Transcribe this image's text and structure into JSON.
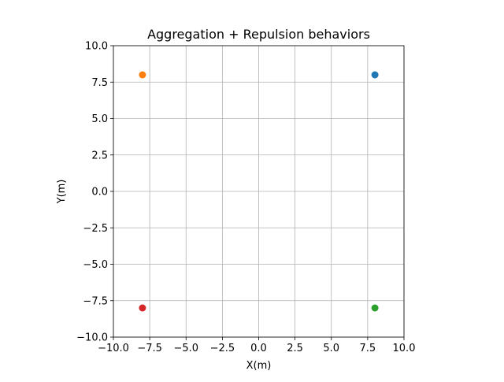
{
  "chart_data": {
    "type": "scatter",
    "title": "Aggregation + Repulsion behaviors",
    "xlabel": "X(m)",
    "ylabel": "Y(m)",
    "xlim": [
      -10,
      10
    ],
    "ylim": [
      -10,
      10
    ],
    "xticks": [
      -10,
      -7.5,
      -5,
      -2.5,
      0,
      2.5,
      5,
      7.5,
      10
    ],
    "yticks": [
      -10,
      -7.5,
      -5,
      -2.5,
      0,
      2.5,
      5,
      7.5,
      10
    ],
    "xtick_labels": [
      "−10.0",
      "−7.5",
      "−5.0",
      "−2.5",
      "0.0",
      "2.5",
      "5.0",
      "7.5",
      "10.0"
    ],
    "ytick_labels": [
      "−10.0",
      "−7.5",
      "−5.0",
      "−2.5",
      "0.0",
      "2.5",
      "5.0",
      "7.5",
      "10.0"
    ],
    "grid": true,
    "legend": false,
    "points": [
      {
        "x": 8,
        "y": 8,
        "color": "#1f77b4"
      },
      {
        "x": -8,
        "y": 8,
        "color": "#ff7f0e"
      },
      {
        "x": 8,
        "y": -8,
        "color": "#2ca02c"
      },
      {
        "x": -8,
        "y": -8,
        "color": "#d62728"
      }
    ]
  }
}
